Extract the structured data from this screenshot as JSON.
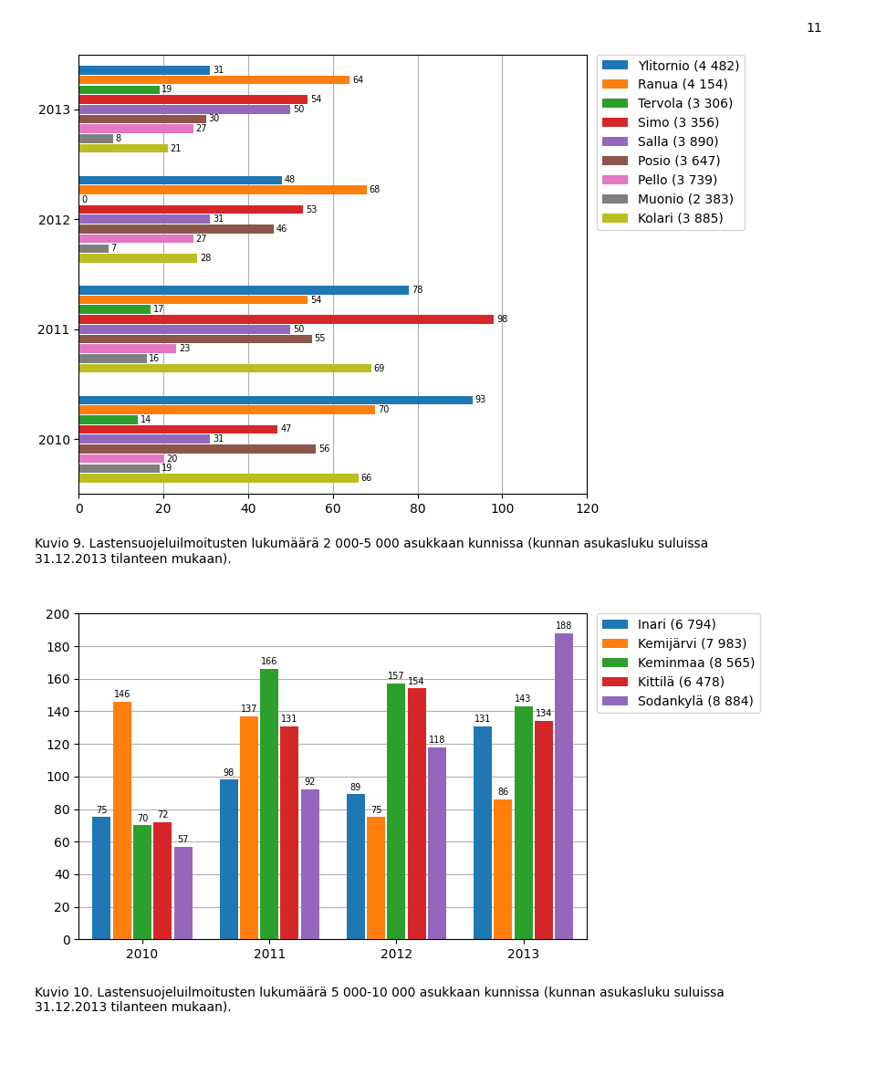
{
  "chart_data": [
    {
      "type": "bar",
      "orientation": "horizontal",
      "title": "Kuvio 9. Lastensuojeluilmoitusten lukumäärä 2 000-5 000 asukkaan kunnissa (kunnan asukasluku suluissa\n31.12.2013 tilanteen mukaan).",
      "annotations": [
        "11"
      ],
      "categories": [
        "2013",
        "2012",
        "2011",
        "2010"
      ],
      "series": [
        {
          "name": "Ylitornio (4 482)",
          "values": [
            31,
            48,
            78,
            93
          ]
        },
        {
          "name": "Ranua (4 154)",
          "values": [
            64,
            68,
            54,
            70
          ]
        },
        {
          "name": "Tervola (3 306)",
          "values": [
            19,
            0,
            17,
            14
          ]
        },
        {
          "name": "Simo (3 356)",
          "values": [
            54,
            53,
            98,
            47
          ]
        },
        {
          "name": "Salla (3 890)",
          "values": [
            50,
            31,
            50,
            31
          ]
        },
        {
          "name": "Posio (3 647)",
          "values": [
            30,
            46,
            55,
            56
          ]
        },
        {
          "name": "Pello (3 739)",
          "values": [
            27,
            27,
            23,
            20
          ]
        },
        {
          "name": "Muonio (2 383)",
          "values": [
            8,
            7,
            16,
            19
          ]
        },
        {
          "name": "Kolari (3 885)",
          "values": [
            21,
            28,
            69,
            66
          ]
        }
      ],
      "xlim": [
        0,
        120
      ],
      "xticks": [
        0,
        20,
        40,
        60,
        80,
        100,
        120
      ],
      "grid": true,
      "legend": "upper left",
      "data_labels": true
    },
    {
      "type": "bar",
      "title": "Kuvio 10. Lastensuojeluilmoitusten lukumäärä 5 000-10 000 asukkaan kunnissa (kunnan asukasluku suluissa\n31.12.2013 tilanteen mukaan).",
      "categories": [
        "2010",
        "2011",
        "2012",
        "2013"
      ],
      "series": [
        {
          "name": "Inari (6 794)",
          "values": [
            75,
            98,
            89,
            131
          ]
        },
        {
          "name": "Kemijärvi (7 983)",
          "values": [
            146,
            137,
            75,
            86
          ]
        },
        {
          "name": "Keminmaa (8 565)",
          "values": [
            70,
            166,
            157,
            143
          ]
        },
        {
          "name": "Kittilä (6 478)",
          "values": [
            72,
            131,
            154,
            134
          ]
        },
        {
          "name": "Sodankylä (8 884)",
          "values": [
            57,
            92,
            118,
            188
          ]
        }
      ],
      "ylim": [
        0,
        200
      ],
      "yticks": [
        0,
        20,
        40,
        60,
        80,
        100,
        120,
        140,
        160,
        180,
        200
      ],
      "grid": true,
      "legend": "upper left",
      "data_labels": true
    }
  ]
}
